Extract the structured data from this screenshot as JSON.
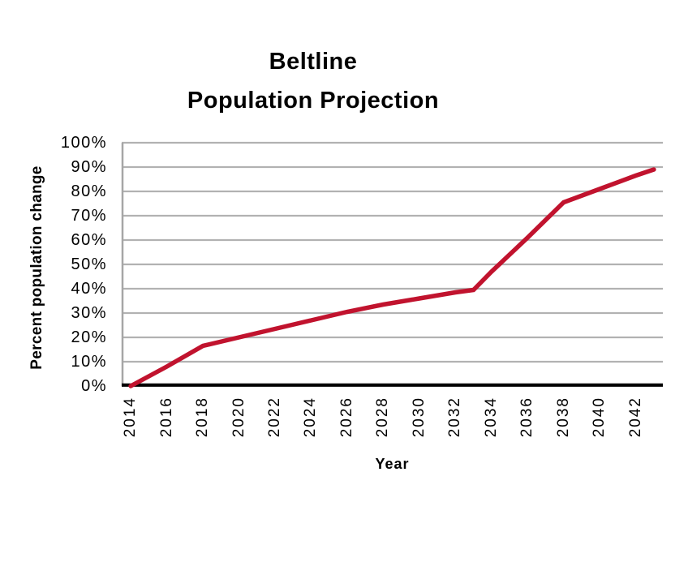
{
  "page": {
    "background": "#FFFFFF"
  },
  "chart_data": {
    "type": "line",
    "title_lines": [
      "Beltline",
      "Population Projection"
    ],
    "xlabel": "Year",
    "ylabel": "Percent population change",
    "x_tick_labels": [
      "2014",
      "2016",
      "2018",
      "2020",
      "2022",
      "2024",
      "2026",
      "2028",
      "2030",
      "2032",
      "2034",
      "2036",
      "2038",
      "2040",
      "2042"
    ],
    "y_tick_labels": [
      "100%",
      "90%",
      "80%",
      "70%",
      "60%",
      "50%",
      "40%",
      "30%",
      "20%",
      "10%",
      "0%"
    ],
    "ylim": [
      0,
      100
    ],
    "x_axis_year_range": [
      2014,
      2043
    ],
    "grid": "horizontal",
    "legend": false,
    "series": [
      {
        "color": "#C1132E",
        "points": [
          [
            2014,
            0
          ],
          [
            2016,
            8
          ],
          [
            2018,
            16.5
          ],
          [
            2020,
            20
          ],
          [
            2022,
            23.5
          ],
          [
            2024,
            27
          ],
          [
            2026,
            30.5
          ],
          [
            2028,
            33.5
          ],
          [
            2030,
            36
          ],
          [
            2032,
            38.5
          ],
          [
            2033,
            39.5
          ],
          [
            2034,
            47
          ],
          [
            2036,
            61
          ],
          [
            2038,
            75.5
          ],
          [
            2040,
            81
          ],
          [
            2042,
            86.5
          ],
          [
            2043,
            89
          ]
        ]
      }
    ],
    "colors": {
      "line": "#C1132E",
      "gridline": "#B2B2B2",
      "y_axis_line": "#A6A6A6",
      "x_axis_line": "#000000",
      "text": "#000000"
    }
  }
}
